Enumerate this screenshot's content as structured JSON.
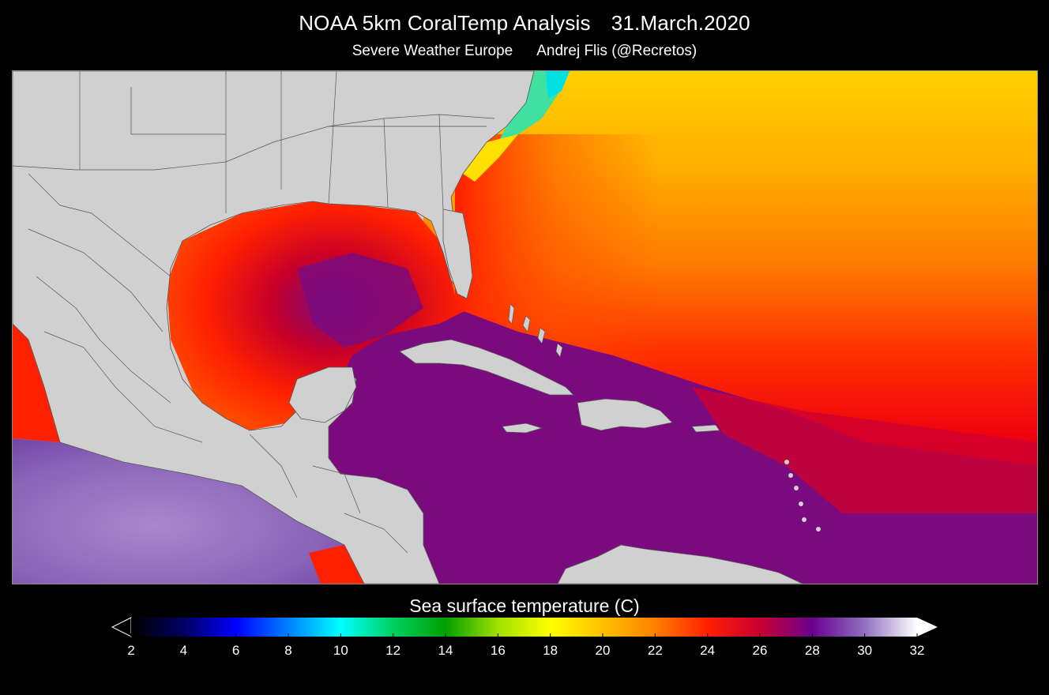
{
  "header": {
    "title": "NOAA 5km CoralTemp Analysis",
    "date": "31.March.2020",
    "source": "Severe Weather Europe",
    "author": "Andrej Flis (@Recretos)"
  },
  "map": {
    "region": "Gulf of Mexico, Caribbean Sea and western North Atlantic",
    "field": "sea surface temperature"
  },
  "colorbar": {
    "label": "Sea surface temperature (C)",
    "min": 2,
    "max": 32,
    "ticks": [
      "2",
      "4",
      "6",
      "8",
      "10",
      "12",
      "14",
      "16",
      "18",
      "20",
      "22",
      "24",
      "26",
      "28",
      "30",
      "32"
    ],
    "stops": [
      {
        "value": 2,
        "color": "#000000"
      },
      {
        "value": 4,
        "color": "#000060"
      },
      {
        "value": 6,
        "color": "#0000ff"
      },
      {
        "value": 8,
        "color": "#0080ff"
      },
      {
        "value": 10,
        "color": "#00ffff"
      },
      {
        "value": 12,
        "color": "#00d060"
      },
      {
        "value": 14,
        "color": "#00a000"
      },
      {
        "value": 16,
        "color": "#a0e000"
      },
      {
        "value": 18,
        "color": "#ffff00"
      },
      {
        "value": 20,
        "color": "#ffc000"
      },
      {
        "value": 22,
        "color": "#ff8000"
      },
      {
        "value": 24,
        "color": "#ff2000"
      },
      {
        "value": 26,
        "color": "#c80030"
      },
      {
        "value": 28,
        "color": "#6a0090"
      },
      {
        "value": 30,
        "color": "#9070c0"
      },
      {
        "value": 32,
        "color": "#ffffff"
      }
    ]
  },
  "colors": {
    "land": "#d0d0d0",
    "borders": "#555555",
    "warm_pool": "#7a0a7e",
    "gulf": "#ff2a00",
    "atlantic_north": "#ffc800",
    "atlantic_mid": "#ff6a00",
    "pacific": "#8a64b8"
  }
}
